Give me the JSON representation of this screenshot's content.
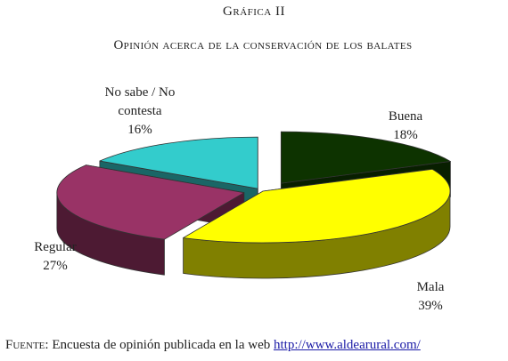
{
  "figure_label": "Gráfica II",
  "chart_data": {
    "type": "pie",
    "title": "Opinión acerca de la conservación de los balates",
    "categories": [
      "Buena",
      "Mala",
      "Regular",
      "No sabe / No contesta"
    ],
    "values": [
      18,
      39,
      27,
      16
    ],
    "value_labels": [
      "18%",
      "39%",
      "27%",
      "16%"
    ],
    "label_lines": [
      [
        "Buena",
        "18%"
      ],
      [
        "Mala",
        "39%"
      ],
      [
        "Regular",
        "27%"
      ],
      [
        "No sabe / No",
        "contesta",
        "16%"
      ]
    ],
    "colors": [
      "#0d3300",
      "#ffff00",
      "#993366",
      "#33cccc"
    ],
    "side_colors": [
      "#081f00",
      "#808000",
      "#4d1a33",
      "#1a6666"
    ],
    "exploded": true,
    "three_d": true
  },
  "source": {
    "prefix": "Fuente:",
    "text": " Encuesta de opinión publicada en la web ",
    "link": "http://www.aldearural.com/"
  }
}
